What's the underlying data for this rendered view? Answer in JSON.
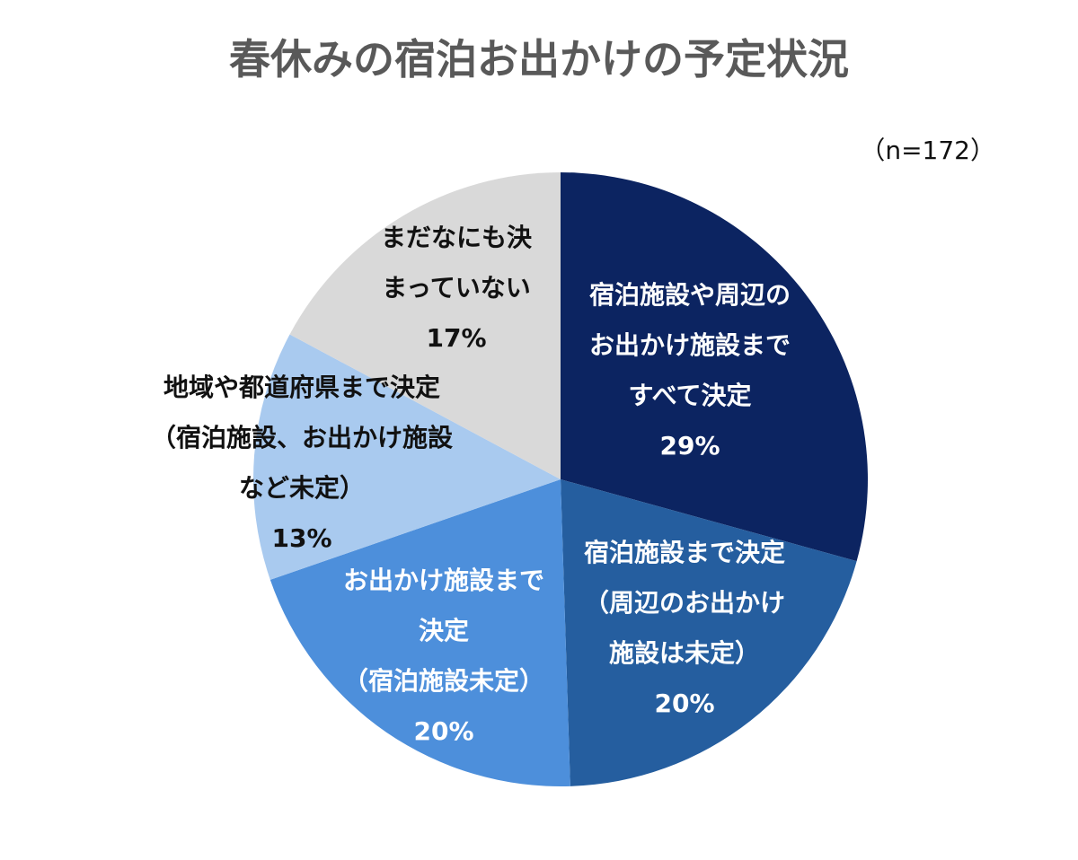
{
  "title": "春休みの宿泊お出かけの予定状況",
  "sample_size": "（n=172）",
  "colors": {
    "dark_navy": "#0c2461",
    "steel_blue": "#255e9f",
    "medium_blue": "#4d8fdb",
    "light_blue": "#a9caef",
    "light_gray": "#d9d9d9",
    "white_text": "#ffffff",
    "black_text": "#111111"
  },
  "chart_data": {
    "type": "pie",
    "title": "春休みの宿泊お出かけの予定状況",
    "slices": [
      {
        "label_lines": [
          "宿泊施設や周辺の",
          "お出かけ施設まで",
          "すべて決定"
        ],
        "value": 29,
        "value_label": "29%",
        "color": "#0c2461",
        "text_color": "#ffffff"
      },
      {
        "label_lines": [
          "宿泊施設まで決定",
          "（周辺のお出かけ",
          "施設は未定）"
        ],
        "value": 20,
        "value_label": "20%",
        "color": "#255e9f",
        "text_color": "#ffffff"
      },
      {
        "label_lines": [
          "お出かけ施設まで",
          "決定",
          "（宿泊施設未定）"
        ],
        "value": 20,
        "value_label": "20%",
        "color": "#4d8fdb",
        "text_color": "#ffffff"
      },
      {
        "label_lines": [
          "地域や都道府県まで決定",
          "（宿泊施設、お出かけ施設",
          "など未定）"
        ],
        "value": 13,
        "value_label": "13%",
        "color": "#a9caef",
        "text_color": "#111111"
      },
      {
        "label_lines": [
          "まだなにも決",
          "まっていない"
        ],
        "value": 17,
        "value_label": "17%",
        "color": "#d9d9d9",
        "text_color": "#111111"
      }
    ]
  }
}
